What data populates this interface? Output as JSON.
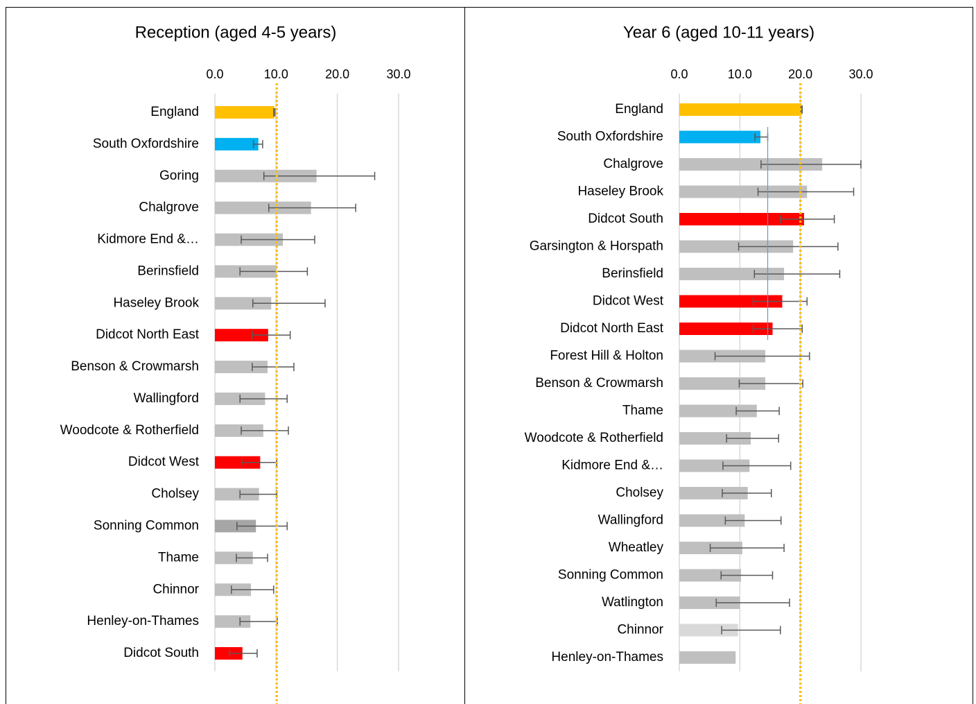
{
  "chart_data": [
    {
      "type": "bar",
      "title": "Reception (aged 4-5 years)",
      "categories": [
        "England",
        "South Oxfordshire",
        "Goring",
        "Chalgrove",
        "Kidmore End &…",
        "Berinsfield",
        "Haseley Brook",
        "Didcot North East",
        "Benson & Crowmarsh",
        "Wallingford",
        "Woodcote & Rotherfield",
        "Didcot West",
        "Cholsey",
        "Sonning Common",
        "Thame",
        "Chinnor",
        "Henley-on-Thames",
        "Didcot South"
      ],
      "values": [
        9.7,
        7.1,
        16.6,
        15.7,
        11.1,
        10.1,
        9.2,
        8.7,
        8.6,
        8.2,
        7.9,
        7.4,
        7.2,
        6.7,
        6.2,
        5.9,
        5.8,
        4.5
      ],
      "lower": [
        9.6,
        6.3,
        8.0,
        8.8,
        4.3,
        4.1,
        6.2,
        6.1,
        6.1,
        4.1,
        4.3,
        4.4,
        4.1,
        3.6,
        3.5,
        2.7,
        4.1,
        2.4
      ],
      "upper": [
        9.8,
        7.8,
        26.1,
        23.0,
        16.3,
        15.1,
        18.0,
        12.3,
        12.9,
        11.8,
        12.0,
        10.1,
        10.1,
        11.8,
        8.6,
        9.6,
        10.2,
        6.9
      ],
      "colors": [
        "#ffc000",
        "#00b0f0",
        "#bfbfbf",
        "#bfbfbf",
        "#bfbfbf",
        "#bfbfbf",
        "#bfbfbf",
        "#ff0000",
        "#bfbfbf",
        "#bfbfbf",
        "#bfbfbf",
        "#ff0000",
        "#bfbfbf",
        "#a6a6a6",
        "#bfbfbf",
        "#bfbfbf",
        "#bfbfbf",
        "#ff0000"
      ],
      "xlim": [
        0,
        30
      ],
      "xticks": [
        {
          "value": 0,
          "label": "0.0"
        },
        {
          "value": 10,
          "label": "10.0"
        },
        {
          "value": 20,
          "label": "20.0"
        },
        {
          "value": 30,
          "label": "30.0"
        }
      ],
      "grid": true,
      "reference_lines": [
        {
          "value": 10.1,
          "color": "#ffc000",
          "style": "dotted"
        }
      ]
    },
    {
      "type": "bar",
      "title": "Year 6 (aged 10-11 years)",
      "categories": [
        "England",
        "South Oxfordshire",
        "Chalgrove",
        "Haseley Brook",
        "Didcot South",
        "Garsington & Horspath",
        "Berinsfield",
        "Didcot West",
        "Didcot North East",
        "Forest Hill & Holton",
        "Benson & Crowmarsh",
        "Thame",
        "Woodcote & Rotherfield",
        "Kidmore End &…",
        "Cholsey",
        "Wallingford",
        "Wheatley",
        "Sonning Common",
        "Watlington",
        "Chinnor",
        "Henley-on-Thames"
      ],
      "values": [
        20.2,
        13.4,
        23.6,
        21.1,
        20.6,
        18.8,
        17.3,
        17.0,
        15.4,
        14.2,
        14.2,
        12.8,
        11.8,
        11.6,
        11.3,
        10.8,
        10.4,
        10.2,
        10.0,
        9.7,
        9.3
      ],
      "lower": [
        20.1,
        12.5,
        13.5,
        13.0,
        16.7,
        9.8,
        12.4,
        12.2,
        12.2,
        5.9,
        9.9,
        9.4,
        7.8,
        7.2,
        7.1,
        7.6,
        5.1,
        6.9,
        6.1,
        7.0,
        null
      ],
      "upper": [
        20.3,
        14.6,
        30.0,
        28.8,
        25.6,
        26.2,
        26.5,
        21.1,
        20.3,
        21.5,
        20.4,
        16.5,
        16.4,
        18.4,
        15.2,
        16.8,
        17.3,
        15.4,
        18.2,
        16.7,
        null
      ],
      "colors": [
        "#ffc000",
        "#00b0f0",
        "#bfbfbf",
        "#bfbfbf",
        "#ff0000",
        "#bfbfbf",
        "#bfbfbf",
        "#ff0000",
        "#ff0000",
        "#bfbfbf",
        "#bfbfbf",
        "#bfbfbf",
        "#bfbfbf",
        "#bfbfbf",
        "#bfbfbf",
        "#bfbfbf",
        "#bfbfbf",
        "#bfbfbf",
        "#bfbfbf",
        "#d9d9d9",
        "#bfbfbf"
      ],
      "xlim": [
        0,
        30
      ],
      "xticks": [
        {
          "value": 0,
          "label": "0.0"
        },
        {
          "value": 10,
          "label": "10.0"
        },
        {
          "value": 20,
          "label": "20.0"
        },
        {
          "value": 30,
          "label": "30.0"
        }
      ],
      "grid": true,
      "reference_lines": [
        {
          "value": 20.0,
          "color": "#ffc000",
          "style": "dotted"
        },
        {
          "value": 14.6,
          "color": "#5b9bd5",
          "style": "solid"
        }
      ]
    }
  ]
}
